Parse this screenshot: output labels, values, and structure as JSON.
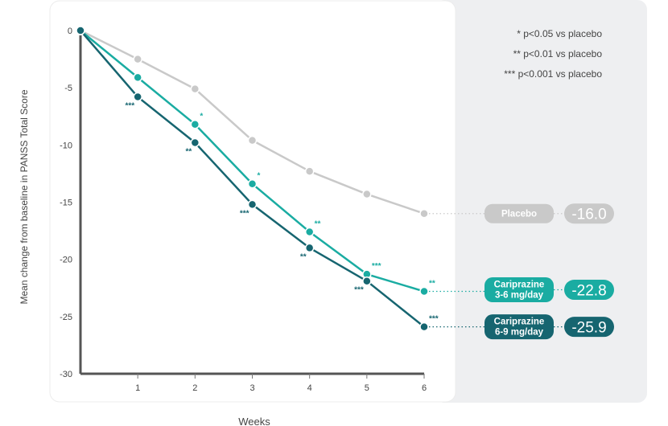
{
  "chart_data": {
    "type": "line",
    "xlabel": "Weeks",
    "ylabel": "Mean change from baseline in PANSS Total Score",
    "x": [
      0,
      1,
      2,
      3,
      4,
      5,
      6
    ],
    "x_tick_labels": [
      "1",
      "2",
      "3",
      "4",
      "5",
      "6"
    ],
    "y_tick_labels": [
      "0",
      "-5",
      "-10",
      "-15",
      "-20",
      "-25",
      "-30"
    ],
    "xlim": [
      0,
      6
    ],
    "ylim": [
      -30,
      0
    ],
    "grid": false,
    "legend_placement": "right",
    "significance_legend": [
      "* p<0.05 vs placebo",
      "** p<0.01 vs placebo",
      "*** p<0.001 vs placebo"
    ],
    "series": [
      {
        "name": "Placebo",
        "label_lines": [
          "Placebo"
        ],
        "final_value": "-16.0",
        "color": "#c9c9c9",
        "values": [
          0,
          -2.5,
          -5.1,
          -9.6,
          -12.3,
          -14.3,
          -16.0
        ],
        "stars": [
          "",
          "",
          "",
          "",
          "",
          "",
          ""
        ]
      },
      {
        "name": "Cariprazine 3-6 mg/day",
        "label_lines": [
          "Cariprazine",
          "3-6 mg/day"
        ],
        "final_value": "-22.8",
        "color": "#1aaca2",
        "values": [
          0,
          -4.1,
          -8.2,
          -13.4,
          -17.6,
          -21.3,
          -22.8
        ],
        "stars": [
          "",
          "",
          "*",
          "*",
          "**",
          "***",
          "**"
        ]
      },
      {
        "name": "Cariprazine 6-9 mg/day",
        "label_lines": [
          "Cariprazine",
          "6-9 mg/day"
        ],
        "final_value": "-25.9",
        "color": "#166570",
        "values": [
          0,
          -5.8,
          -9.8,
          -15.2,
          -19.0,
          -21.9,
          -25.9
        ],
        "stars": [
          "",
          "***",
          "**",
          "***",
          "**",
          "***",
          "***"
        ]
      }
    ]
  }
}
